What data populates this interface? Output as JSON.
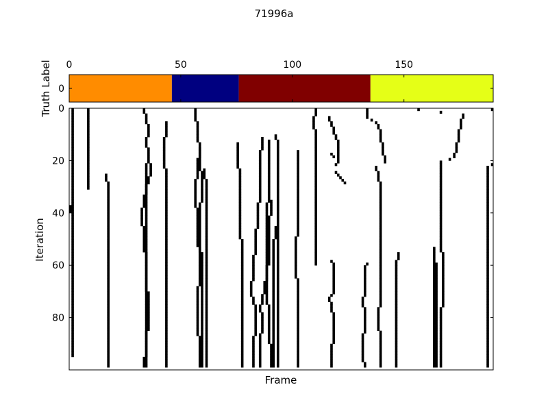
{
  "chart_data": [
    {
      "type": "heatmap",
      "title": "71996a",
      "ylabel": "Truth Label",
      "xlabel": "",
      "x_ticks": [
        0,
        50,
        100,
        150
      ],
      "y_ticks": [
        0
      ],
      "xlim": [
        0,
        190
      ],
      "segments": [
        {
          "start": 0,
          "end": 46,
          "color": "#ff8c00"
        },
        {
          "start": 46,
          "end": 76,
          "color": "#000080"
        },
        {
          "start": 76,
          "end": 135,
          "color": "#800000"
        },
        {
          "start": 135,
          "end": 190,
          "color": "#e5ff17"
        }
      ]
    },
    {
      "type": "heatmap",
      "title": "",
      "xlabel": "Frame",
      "ylabel": "Iteration",
      "xlim": [
        0,
        190
      ],
      "ylim": [
        0,
        100
      ],
      "y_ticks": [
        0,
        20,
        40,
        60,
        80
      ],
      "y_inverted": true,
      "cell_color": "#000000",
      "background": "#ffffff",
      "tracks": [
        {
          "points": [
            [
              0,
              0.5
            ],
            [
              10,
              0.5
            ],
            [
              30,
              0.5
            ],
            [
              60,
              0.5
            ],
            [
              95,
              0.5
            ]
          ]
        },
        {
          "points": [
            [
              0,
              8
            ],
            [
              2,
              8
            ],
            [
              3,
              8
            ],
            [
              31,
              8
            ]
          ]
        },
        {
          "points": [
            [
              37,
              -0.5
            ],
            [
              39,
              -0.5
            ],
            [
              40,
              -1.5
            ],
            [
              53,
              -5.5
            ],
            [
              80,
              -5.5
            ],
            [
              99,
              -5.5
            ]
          ]
        },
        {
          "points": [
            [
              25,
              16
            ],
            [
              30,
              17
            ],
            [
              40,
              17
            ],
            [
              60,
              17
            ],
            [
              80,
              17
            ],
            [
              99,
              17
            ]
          ]
        },
        {
          "points": [
            [
              0,
              33
            ],
            [
              8,
              35
            ],
            [
              12,
              34
            ],
            [
              24,
              36
            ],
            [
              30,
              34
            ],
            [
              40,
              32
            ],
            [
              60,
              34
            ],
            [
              80,
              35
            ],
            [
              99,
              33
            ]
          ]
        },
        {
          "points": [
            [
              5,
              43
            ],
            [
              15,
              42
            ],
            [
              30,
              43
            ],
            [
              40,
              43
            ],
            [
              60,
              43
            ],
            [
              90,
              43
            ],
            [
              99,
              43
            ]
          ]
        },
        {
          "points": [
            [
              21,
              34
            ],
            [
              30,
              34
            ],
            [
              40,
              34
            ],
            [
              60,
              34
            ],
            [
              80,
              34
            ],
            [
              99,
              34
            ]
          ]
        },
        {
          "points": [
            [
              15,
              58
            ],
            [
              30,
              56
            ],
            [
              45,
              57
            ],
            [
              60,
              58
            ],
            [
              75,
              57
            ],
            [
              99,
              58
            ]
          ]
        },
        {
          "points": [
            [
              23,
              60
            ],
            [
              30,
              61
            ],
            [
              40,
              61
            ],
            [
              60,
              61
            ],
            [
              80,
              61
            ],
            [
              99,
              61
            ]
          ]
        },
        {
          "points": [
            [
              0,
              56
            ],
            [
              1,
              56
            ],
            [
              16,
              58
            ],
            [
              17,
              58
            ],
            [
              30,
              59
            ],
            [
              40,
              58
            ],
            [
              50,
              58
            ],
            [
              60,
              59
            ],
            [
              80,
              59
            ],
            [
              99,
              59
            ]
          ]
        },
        {
          "points": [
            [
              13,
              75
            ],
            [
              20,
              75
            ],
            [
              25,
              76
            ],
            [
              40,
              76
            ],
            [
              60,
              77
            ],
            [
              75,
              77
            ],
            [
              99,
              77
            ]
          ]
        },
        {
          "points": [
            [
              35,
              90
            ],
            [
              45,
              89
            ],
            [
              56,
              89
            ],
            [
              62,
              88
            ],
            [
              68,
              87
            ],
            [
              76,
              85
            ],
            [
              80,
              86
            ],
            [
              90,
              85
            ],
            [
              99,
              85
            ]
          ]
        },
        {
          "points": [
            [
              45,
              92
            ],
            [
              54,
              91
            ],
            [
              60,
              91
            ],
            [
              69,
              91
            ],
            [
              80,
              91
            ],
            [
              99,
              91
            ]
          ]
        },
        {
          "points": [
            [
              11,
              86
            ],
            [
              20,
              85
            ],
            [
              30,
              85
            ],
            [
              40,
              84
            ],
            [
              50,
              83
            ],
            [
              60,
              82
            ],
            [
              70,
              81
            ],
            [
              76,
              83
            ],
            [
              96,
              82
            ],
            [
              99,
              82
            ]
          ]
        },
        {
          "points": [
            [
              12,
              89
            ],
            [
              20,
              89
            ],
            [
              30,
              89
            ],
            [
              40,
              88
            ],
            [
              50,
              88
            ],
            [
              60,
              88
            ],
            [
              70,
              88
            ],
            [
              80,
              89
            ],
            [
              99,
              90
            ]
          ]
        },
        {
          "points": [
            [
              10,
              92
            ],
            [
              14,
              93
            ],
            [
              30,
              93
            ],
            [
              40,
              93
            ],
            [
              50,
              93
            ],
            [
              60,
              93
            ],
            [
              70,
              93
            ],
            [
              80,
              93
            ],
            [
              99,
              93
            ]
          ]
        },
        {
          "points": [
            [
              16,
              102
            ],
            [
              25,
              102
            ],
            [
              35,
              102
            ],
            [
              47,
              102
            ],
            [
              50,
              101
            ],
            [
              60,
              101
            ],
            [
              70,
              102
            ],
            [
              80,
              102
            ],
            [
              99,
              102
            ]
          ]
        },
        {
          "points": [
            [
              0,
              110
            ],
            [
              5,
              109
            ],
            [
              10,
              110
            ],
            [
              20,
              110
            ],
            [
              30,
              110
            ],
            [
              60,
              110
            ]
          ]
        },
        {
          "points": [
            [
              3,
              116
            ],
            [
              8,
              118
            ],
            [
              13,
              120
            ],
            [
              20,
              120
            ],
            [
              22,
              118
            ]
          ]
        },
        {
          "points": [
            [
              17,
              117
            ],
            [
              19,
              118
            ]
          ]
        },
        {
          "points": [
            [
              24,
              119
            ],
            [
              25,
              120
            ],
            [
              26,
              121
            ],
            [
              28,
              123
            ],
            [
              29,
              124
            ]
          ]
        },
        {
          "points": [
            [
              0,
              133
            ],
            [
              3,
              133
            ],
            [
              5,
              137
            ],
            [
              8,
              139
            ],
            [
              11,
              139
            ],
            [
              15,
              140
            ],
            [
              20,
              141
            ],
            [
              21,
              144
            ]
          ]
        },
        {
          "points": [
            [
              58,
              117
            ],
            [
              60,
              118
            ],
            [
              70,
              118
            ],
            [
              72,
              116
            ],
            [
              80,
              118
            ],
            [
              99,
              117
            ]
          ]
        },
        {
          "points": [
            [
              59,
              133
            ],
            [
              60,
              132
            ],
            [
              70,
              132
            ],
            [
              72,
              131
            ],
            [
              80,
              132
            ],
            [
              90,
              131
            ],
            [
              95,
              131
            ],
            [
              99,
              132
            ]
          ]
        },
        {
          "points": [
            [
              22,
              137
            ],
            [
              25,
              138
            ],
            [
              30,
              139
            ],
            [
              40,
              139
            ],
            [
              50,
              139
            ],
            [
              60,
              139
            ],
            [
              70,
              139
            ],
            [
              80,
              138
            ],
            [
              90,
              139
            ],
            [
              99,
              139
            ]
          ]
        },
        {
          "points": [
            [
              55,
              147
            ],
            [
              60,
              146
            ],
            [
              70,
              146
            ],
            [
              72,
              146
            ],
            [
              80,
              146
            ],
            [
              90,
              146
            ],
            [
              99,
              146
            ]
          ]
        },
        {
          "points": [
            [
              59,
              164
            ],
            [
              70,
              164
            ],
            [
              80,
              164
            ],
            [
              90,
              164
            ],
            [
              99,
              164
            ]
          ]
        },
        {
          "points": [
            [
              53,
              163
            ],
            [
              70,
              163
            ],
            [
              80,
              163
            ],
            [
              90,
              163
            ],
            [
              99,
              163
            ]
          ]
        },
        {
          "points": [
            [
              20,
              166
            ],
            [
              30,
              166
            ],
            [
              40,
              166
            ],
            [
              50,
              166
            ],
            [
              60,
              167
            ],
            [
              70,
              167
            ],
            [
              80,
              166
            ],
            [
              90,
              166
            ],
            [
              99,
              166
            ]
          ]
        },
        {
          "points": [
            [
              0,
              156
            ],
            [
              2,
              176
            ],
            [
              5,
              175
            ],
            [
              10,
              174
            ],
            [
              15,
              173
            ],
            [
              18,
              172
            ],
            [
              19,
              170
            ],
            [
              20,
              168
            ]
          ]
        },
        {
          "points": [
            [
              22,
              187
            ],
            [
              30,
              187
            ],
            [
              40,
              187
            ],
            [
              60,
              187
            ],
            [
              80,
              187
            ],
            [
              99,
              187
            ]
          ]
        },
        {
          "points": [
            [
              21,
              189
            ],
            [
              22,
              188
            ]
          ]
        },
        {
          "points": [
            [
              0,
              189
            ],
            [
              1,
              189
            ]
          ]
        },
        {
          "points": [
            [
              0,
              77
            ],
            [
              0,
              90
            ],
            [
              0,
              101
            ],
            [
              0,
              107
            ],
            [
              0,
              94
            ]
          ]
        },
        {
          "points": [
            [
              0,
              155
            ],
            [
              0,
              180
            ],
            [
              0,
              162
            ]
          ]
        }
      ]
    }
  ]
}
